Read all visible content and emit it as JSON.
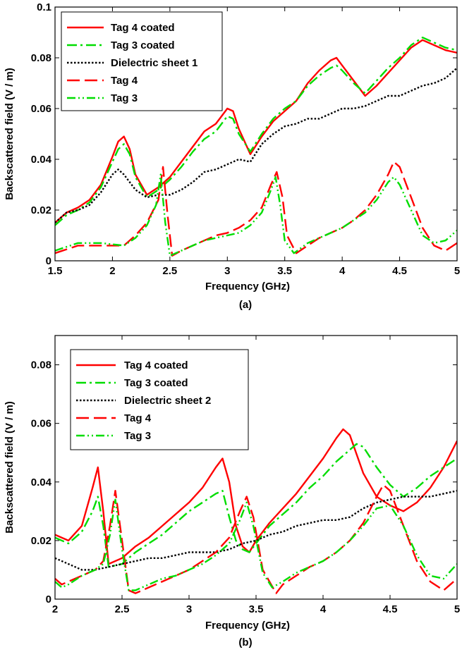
{
  "chart_data": [
    {
      "type": "line",
      "panel_label": "(a)",
      "xlabel": "Frequency (GHz)",
      "ylabel": "Backscattered field (V / m)",
      "xlim": [
        1.5,
        5
      ],
      "ylim": [
        0,
        0.1
      ],
      "xticks": [
        1.5,
        2,
        2.5,
        3,
        3.5,
        4,
        4.5,
        5
      ],
      "xtick_labels": [
        "1.5",
        "2",
        "2.5",
        "3",
        "3.5",
        "4",
        "4.5",
        "5"
      ],
      "yticks": [
        0,
        0.02,
        0.04,
        0.06,
        0.08,
        0.1
      ],
      "ytick_labels": [
        "0",
        "0.02",
        "0.04",
        "0.06",
        "0.08",
        "0.1"
      ],
      "grid": false,
      "legend_position": "top-left",
      "series": [
        {
          "name": "Tag 4 coated",
          "color": "#ff0000",
          "dash": "solid",
          "x": [
            1.5,
            1.6,
            1.7,
            1.8,
            1.9,
            2.0,
            2.05,
            2.1,
            2.15,
            2.2,
            2.3,
            2.4,
            2.5,
            2.6,
            2.7,
            2.8,
            2.9,
            3.0,
            3.05,
            3.1,
            3.2,
            3.3,
            3.4,
            3.5,
            3.6,
            3.7,
            3.8,
            3.9,
            3.95,
            4.0,
            4.1,
            4.2,
            4.3,
            4.4,
            4.5,
            4.6,
            4.7,
            4.8,
            4.9,
            5.0
          ],
          "y": [
            0.015,
            0.019,
            0.021,
            0.024,
            0.03,
            0.041,
            0.047,
            0.049,
            0.044,
            0.034,
            0.026,
            0.029,
            0.033,
            0.039,
            0.045,
            0.051,
            0.054,
            0.06,
            0.059,
            0.052,
            0.042,
            0.049,
            0.055,
            0.059,
            0.063,
            0.07,
            0.075,
            0.079,
            0.08,
            0.077,
            0.071,
            0.065,
            0.069,
            0.074,
            0.079,
            0.084,
            0.087,
            0.085,
            0.083,
            0.082
          ]
        },
        {
          "name": "Tag 3 coated",
          "color": "#00dd00",
          "dash": "dashdot",
          "x": [
            1.5,
            1.6,
            1.7,
            1.8,
            1.9,
            2.0,
            2.05,
            2.1,
            2.15,
            2.2,
            2.3,
            2.4,
            2.5,
            2.6,
            2.7,
            2.8,
            2.9,
            3.0,
            3.05,
            3.1,
            3.2,
            3.3,
            3.4,
            3.5,
            3.6,
            3.7,
            3.8,
            3.9,
            3.95,
            4.0,
            4.1,
            4.2,
            4.3,
            4.4,
            4.5,
            4.6,
            4.7,
            4.8,
            4.9,
            5.0
          ],
          "y": [
            0.014,
            0.018,
            0.02,
            0.023,
            0.029,
            0.039,
            0.044,
            0.046,
            0.042,
            0.033,
            0.025,
            0.028,
            0.032,
            0.037,
            0.043,
            0.048,
            0.051,
            0.057,
            0.056,
            0.05,
            0.043,
            0.05,
            0.056,
            0.06,
            0.063,
            0.069,
            0.073,
            0.076,
            0.077,
            0.075,
            0.07,
            0.066,
            0.071,
            0.076,
            0.08,
            0.085,
            0.088,
            0.086,
            0.084,
            0.083
          ]
        },
        {
          "name": "Dielectric sheet 1",
          "color": "#000000",
          "dash": "dotted",
          "x": [
            1.5,
            1.6,
            1.7,
            1.8,
            1.9,
            2.0,
            2.05,
            2.1,
            2.2,
            2.3,
            2.4,
            2.5,
            2.6,
            2.7,
            2.8,
            2.9,
            3.0,
            3.1,
            3.2,
            3.3,
            3.4,
            3.5,
            3.6,
            3.7,
            3.8,
            3.9,
            4.0,
            4.1,
            4.2,
            4.3,
            4.4,
            4.5,
            4.6,
            4.7,
            4.8,
            4.9,
            5.0
          ],
          "y": [
            0.015,
            0.019,
            0.02,
            0.022,
            0.027,
            0.034,
            0.036,
            0.034,
            0.028,
            0.025,
            0.026,
            0.026,
            0.028,
            0.031,
            0.035,
            0.036,
            0.038,
            0.04,
            0.039,
            0.046,
            0.05,
            0.053,
            0.054,
            0.056,
            0.056,
            0.058,
            0.06,
            0.06,
            0.061,
            0.063,
            0.065,
            0.065,
            0.067,
            0.069,
            0.07,
            0.072,
            0.076
          ]
        },
        {
          "name": "Tag 4",
          "color": "#ff0000",
          "dash": "longdash",
          "x": [
            1.5,
            1.7,
            1.9,
            2.1,
            2.2,
            2.3,
            2.4,
            2.44,
            2.48,
            2.52,
            2.6,
            2.7,
            2.8,
            2.9,
            3.0,
            3.1,
            3.2,
            3.3,
            3.38,
            3.43,
            3.48,
            3.52,
            3.6,
            3.7,
            3.8,
            3.9,
            4.0,
            4.1,
            4.2,
            4.3,
            4.4,
            4.45,
            4.5,
            4.6,
            4.7,
            4.8,
            4.9,
            5.0
          ],
          "y": [
            0.003,
            0.006,
            0.006,
            0.006,
            0.01,
            0.015,
            0.024,
            0.037,
            0.018,
            0.002,
            0.004,
            0.006,
            0.008,
            0.01,
            0.011,
            0.013,
            0.016,
            0.021,
            0.03,
            0.035,
            0.025,
            0.01,
            0.003,
            0.006,
            0.009,
            0.011,
            0.013,
            0.016,
            0.02,
            0.026,
            0.034,
            0.039,
            0.037,
            0.025,
            0.013,
            0.006,
            0.004,
            0.007
          ]
        },
        {
          "name": "Tag 3",
          "color": "#00dd00",
          "dash": "dashdotdot",
          "x": [
            1.5,
            1.7,
            1.9,
            2.1,
            2.2,
            2.3,
            2.38,
            2.42,
            2.46,
            2.5,
            2.6,
            2.7,
            2.8,
            2.9,
            3.0,
            3.1,
            3.2,
            3.3,
            3.38,
            3.42,
            3.46,
            3.5,
            3.58,
            3.7,
            3.8,
            3.9,
            4.0,
            4.1,
            4.2,
            4.3,
            4.4,
            4.45,
            4.5,
            4.6,
            4.7,
            4.8,
            4.9,
            5.0
          ],
          "y": [
            0.004,
            0.007,
            0.007,
            0.006,
            0.009,
            0.014,
            0.022,
            0.034,
            0.015,
            0.002,
            0.004,
            0.006,
            0.008,
            0.009,
            0.01,
            0.011,
            0.014,
            0.019,
            0.028,
            0.033,
            0.022,
            0.008,
            0.003,
            0.007,
            0.009,
            0.011,
            0.013,
            0.016,
            0.019,
            0.024,
            0.031,
            0.033,
            0.03,
            0.02,
            0.01,
            0.007,
            0.008,
            0.012
          ]
        }
      ]
    },
    {
      "type": "line",
      "panel_label": "(b)",
      "xlabel": "Frequency (GHz)",
      "ylabel": "Backscattered field (V / m)",
      "xlim": [
        2,
        5
      ],
      "ylim": [
        0,
        0.09
      ],
      "xticks": [
        2,
        2.5,
        3,
        3.5,
        4,
        4.5,
        5
      ],
      "xtick_labels": [
        "2",
        "2.5",
        "3",
        "3.5",
        "4",
        "4.5",
        "5"
      ],
      "yticks": [
        0,
        0.02,
        0.04,
        0.06,
        0.08
      ],
      "ytick_labels": [
        "0",
        "0.02",
        "0.04",
        "0.06",
        "0.08"
      ],
      "grid": false,
      "legend_position": "top-left",
      "series": [
        {
          "name": "Tag 4 coated",
          "color": "#ff0000",
          "dash": "solid",
          "x": [
            2.0,
            2.1,
            2.2,
            2.28,
            2.32,
            2.36,
            2.4,
            2.5,
            2.6,
            2.7,
            2.8,
            2.9,
            3.0,
            3.1,
            3.2,
            3.25,
            3.3,
            3.35,
            3.4,
            3.45,
            3.5,
            3.6,
            3.7,
            3.8,
            3.9,
            4.0,
            4.1,
            4.15,
            4.2,
            4.3,
            4.4,
            4.5,
            4.6,
            4.7,
            4.8,
            4.9,
            5.0
          ],
          "y": [
            0.022,
            0.02,
            0.025,
            0.038,
            0.045,
            0.03,
            0.012,
            0.014,
            0.018,
            0.021,
            0.025,
            0.029,
            0.033,
            0.038,
            0.045,
            0.048,
            0.04,
            0.025,
            0.018,
            0.016,
            0.02,
            0.026,
            0.031,
            0.036,
            0.042,
            0.048,
            0.055,
            0.058,
            0.056,
            0.043,
            0.035,
            0.032,
            0.03,
            0.033,
            0.038,
            0.045,
            0.054
          ]
        },
        {
          "name": "Tag 3 coated",
          "color": "#00dd00",
          "dash": "dashdot",
          "x": [
            2.0,
            2.1,
            2.2,
            2.28,
            2.32,
            2.36,
            2.4,
            2.5,
            2.6,
            2.7,
            2.8,
            2.9,
            3.0,
            3.1,
            3.2,
            3.25,
            3.3,
            3.35,
            3.4,
            3.45,
            3.5,
            3.6,
            3.7,
            3.8,
            3.9,
            4.0,
            4.1,
            4.2,
            4.25,
            4.3,
            4.4,
            4.5,
            4.6,
            4.7,
            4.8,
            4.9,
            5.0
          ],
          "y": [
            0.021,
            0.019,
            0.023,
            0.03,
            0.035,
            0.025,
            0.011,
            0.012,
            0.016,
            0.019,
            0.022,
            0.026,
            0.03,
            0.033,
            0.036,
            0.037,
            0.028,
            0.02,
            0.017,
            0.016,
            0.019,
            0.025,
            0.029,
            0.033,
            0.038,
            0.042,
            0.047,
            0.051,
            0.053,
            0.052,
            0.045,
            0.039,
            0.035,
            0.038,
            0.042,
            0.045,
            0.048
          ]
        },
        {
          "name": "Dielectric sheet 2",
          "color": "#000000",
          "dash": "dotted",
          "x": [
            2.0,
            2.1,
            2.2,
            2.3,
            2.4,
            2.5,
            2.6,
            2.7,
            2.8,
            2.9,
            3.0,
            3.1,
            3.2,
            3.3,
            3.4,
            3.5,
            3.6,
            3.7,
            3.8,
            3.9,
            4.0,
            4.1,
            4.2,
            4.3,
            4.4,
            4.5,
            4.6,
            4.7,
            4.8,
            4.9,
            5.0
          ],
          "y": [
            0.014,
            0.012,
            0.01,
            0.01,
            0.011,
            0.012,
            0.013,
            0.014,
            0.014,
            0.015,
            0.016,
            0.016,
            0.016,
            0.017,
            0.019,
            0.02,
            0.022,
            0.023,
            0.025,
            0.026,
            0.027,
            0.027,
            0.028,
            0.031,
            0.033,
            0.034,
            0.035,
            0.035,
            0.035,
            0.036,
            0.037
          ]
        },
        {
          "name": "Tag 4",
          "color": "#ff0000",
          "dash": "longdash",
          "x": [
            2.0,
            2.05,
            2.1,
            2.2,
            2.3,
            2.36,
            2.41,
            2.45,
            2.5,
            2.55,
            2.6,
            2.7,
            2.8,
            2.9,
            3.0,
            3.1,
            3.2,
            3.3,
            3.38,
            3.43,
            3.48,
            3.55,
            3.65,
            3.7,
            3.8,
            3.9,
            4.0,
            4.1,
            4.2,
            4.3,
            4.4,
            4.45,
            4.5,
            4.6,
            4.7,
            4.8,
            4.9,
            5.0
          ],
          "y": [
            0.007,
            0.005,
            0.006,
            0.008,
            0.01,
            0.013,
            0.025,
            0.037,
            0.02,
            0.003,
            0.002,
            0.004,
            0.006,
            0.008,
            0.01,
            0.013,
            0.016,
            0.021,
            0.03,
            0.035,
            0.028,
            0.01,
            0.002,
            0.005,
            0.008,
            0.011,
            0.013,
            0.016,
            0.02,
            0.026,
            0.035,
            0.039,
            0.037,
            0.025,
            0.013,
            0.006,
            0.003,
            0.007
          ]
        },
        {
          "name": "Tag 3",
          "color": "#00dd00",
          "dash": "dashdotdot",
          "x": [
            2.0,
            2.05,
            2.1,
            2.2,
            2.3,
            2.36,
            2.41,
            2.45,
            2.5,
            2.55,
            2.6,
            2.7,
            2.8,
            2.9,
            3.0,
            3.1,
            3.2,
            3.3,
            3.38,
            3.43,
            3.48,
            3.55,
            3.62,
            3.7,
            3.8,
            3.9,
            4.0,
            4.1,
            4.2,
            4.3,
            4.4,
            4.5,
            4.6,
            4.7,
            4.8,
            4.9,
            5.0
          ],
          "y": [
            0.006,
            0.004,
            0.005,
            0.008,
            0.01,
            0.012,
            0.022,
            0.034,
            0.017,
            0.003,
            0.003,
            0.005,
            0.007,
            0.008,
            0.01,
            0.012,
            0.015,
            0.019,
            0.027,
            0.033,
            0.025,
            0.009,
            0.004,
            0.006,
            0.009,
            0.011,
            0.013,
            0.016,
            0.02,
            0.025,
            0.031,
            0.032,
            0.025,
            0.015,
            0.008,
            0.007,
            0.012
          ]
        }
      ]
    }
  ]
}
